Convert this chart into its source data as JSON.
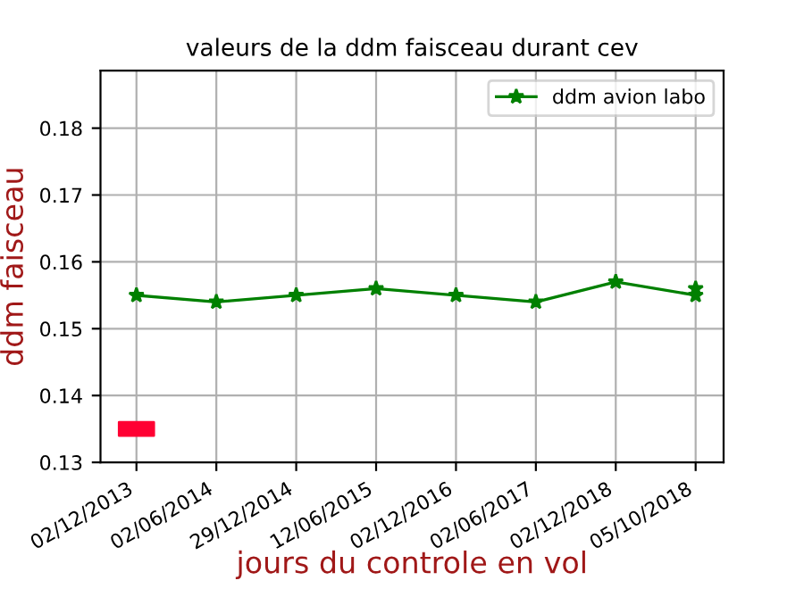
{
  "chart_data": {
    "type": "line",
    "title": "valeurs de la ddm faisceau durant cev",
    "xlabel": "jours du controle en vol",
    "ylabel": "ddm faisceau",
    "categories": [
      "02/12/2013",
      "02/06/2014",
      "29/12/2014",
      "12/06/2015",
      "02/12/2016",
      "02/06/2017",
      "02/12/2018",
      "05/10/2018"
    ],
    "series": [
      {
        "name": "ddm avion labo",
        "color": "#008000",
        "marker": "star",
        "values": [
          0.155,
          0.154,
          0.155,
          0.156,
          0.155,
          0.154,
          0.157,
          0.155
        ]
      },
      {
        "type": "scatter",
        "color": "#008000",
        "marker": "star",
        "values": [
          null,
          null,
          null,
          null,
          null,
          null,
          null,
          0.156
        ]
      },
      {
        "type": "scatter",
        "color": "#ff0033",
        "marker": "square",
        "values": [
          0.135,
          null,
          null,
          null,
          null,
          null,
          null,
          null
        ]
      }
    ],
    "ylim": [
      0.13,
      0.1886
    ],
    "yticks": [
      0.13,
      0.14,
      0.15,
      0.16,
      0.17,
      0.18
    ],
    "grid": true,
    "legend": "top right"
  }
}
